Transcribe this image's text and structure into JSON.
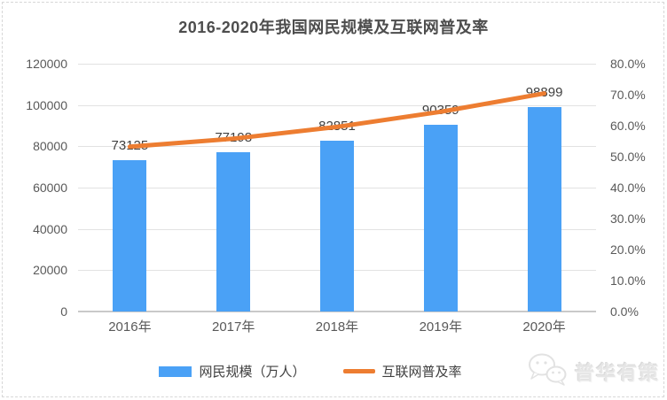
{
  "title": "2016-2020年我国网民规模及互联网普及率",
  "chart_data": {
    "type": "bar",
    "subtype": "combo-bar-line-dual-axis",
    "categories": [
      "2016年",
      "2017年",
      "2018年",
      "2019年",
      "2020年"
    ],
    "series": [
      {
        "name": "网民规模（万人）",
        "type": "bar",
        "axis": "left",
        "values": [
          73125,
          77198,
          82851,
          90359,
          98899
        ],
        "data_labels": [
          "73125",
          "77198",
          "82851",
          "90359",
          "98899"
        ],
        "color": "#4AA1F6"
      },
      {
        "name": "互联网普及率",
        "type": "line",
        "axis": "right",
        "values_percent": [
          53.2,
          55.8,
          59.6,
          64.5,
          70.4
        ],
        "color": "#ED7D31"
      }
    ],
    "left_axis": {
      "min": 0,
      "max": 120000,
      "ticks": [
        "120000",
        "100000",
        "80000",
        "60000",
        "40000",
        "20000",
        "0"
      ]
    },
    "right_axis": {
      "min": 0,
      "max": 80,
      "ticks": [
        "80.0%",
        "70.0%",
        "60.0%",
        "50.0%",
        "40.0%",
        "30.0%",
        "20.0%",
        "10.0%",
        "0.0%"
      ]
    },
    "grid": true,
    "legend_position": "bottom"
  },
  "legend": [
    {
      "label": "网民规模（万人）",
      "color": "#4AA1F6"
    },
    {
      "label": "互联网普及率",
      "color": "#ED7D31"
    }
  ],
  "watermark": {
    "text": "普华有策",
    "icon": "chat-bubbles-icon"
  },
  "colors": {
    "bar": "#4AA1F6",
    "line": "#ED7D31",
    "gridline": "#e2e2e2",
    "axis_line": "#c9c9c9",
    "tick_text": "#595959",
    "data_label_text": "#404040",
    "title_text": "#4d4d4d"
  }
}
